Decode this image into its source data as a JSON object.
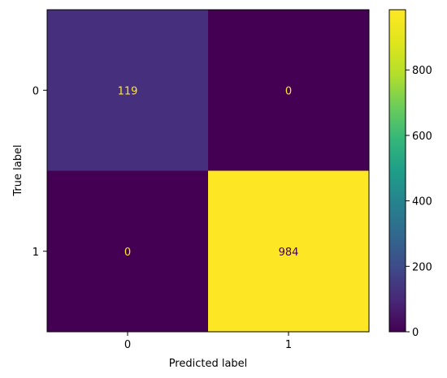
{
  "chart_data": {
    "type": "heatmap",
    "title": "",
    "xlabel": "Predicted label",
    "ylabel": "True label",
    "x_categories": [
      "0",
      "1"
    ],
    "y_categories": [
      "0",
      "1"
    ],
    "values": [
      [
        119,
        0
      ],
      [
        0,
        984
      ]
    ],
    "colormap": "viridis",
    "colorbar": {
      "range": [
        0,
        984
      ],
      "ticks": [
        0,
        200,
        400,
        600,
        800
      ]
    },
    "cell_text_colors": {
      "on_dark": "#fde725",
      "on_light": "#440154"
    },
    "grid": false,
    "legend": "none"
  }
}
